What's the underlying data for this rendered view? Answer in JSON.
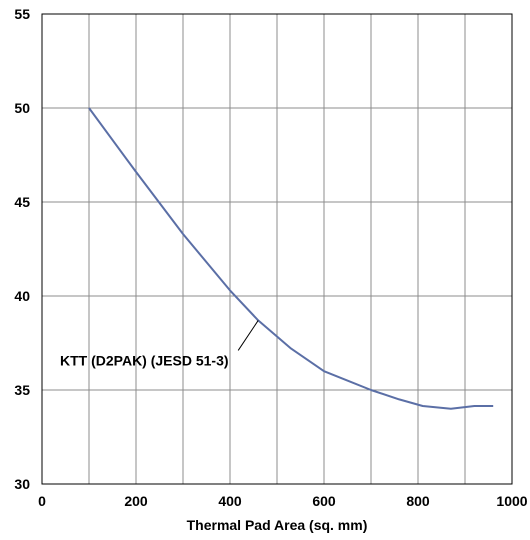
{
  "chart_data": {
    "type": "line",
    "title": "",
    "xlabel": "Thermal Pad Area (sq. mm)",
    "ylabel": "",
    "xlim": [
      0,
      1000
    ],
    "ylim": [
      30,
      55
    ],
    "x_ticks": [
      0,
      200,
      400,
      600,
      800,
      1000
    ],
    "y_ticks": [
      30,
      35,
      40,
      45,
      50,
      55
    ],
    "x_tick_labels": [
      "0",
      "200",
      "400",
      "600",
      "800",
      "1000"
    ],
    "y_tick_labels": [
      "30",
      "35",
      "40",
      "45",
      "50",
      "55"
    ],
    "x_grid_step": 100,
    "grid": true,
    "series": [
      {
        "name": "KTT (D2PAK) (JESD 51-3)",
        "color": "#5b6fa6",
        "x": [
          100,
          200,
          300,
          400,
          460,
          530,
          600,
          700,
          760,
          810,
          870,
          920,
          960
        ],
        "y": [
          50.0,
          46.6,
          43.3,
          40.3,
          38.7,
          37.2,
          36.0,
          35.0,
          34.5,
          34.15,
          34.0,
          34.15,
          34.15
        ]
      }
    ],
    "annotations": [
      {
        "text": "KTT (D2PAK) (JESD 51-3)",
        "points_to": {
          "x": 460,
          "y": 38.7
        }
      }
    ]
  }
}
